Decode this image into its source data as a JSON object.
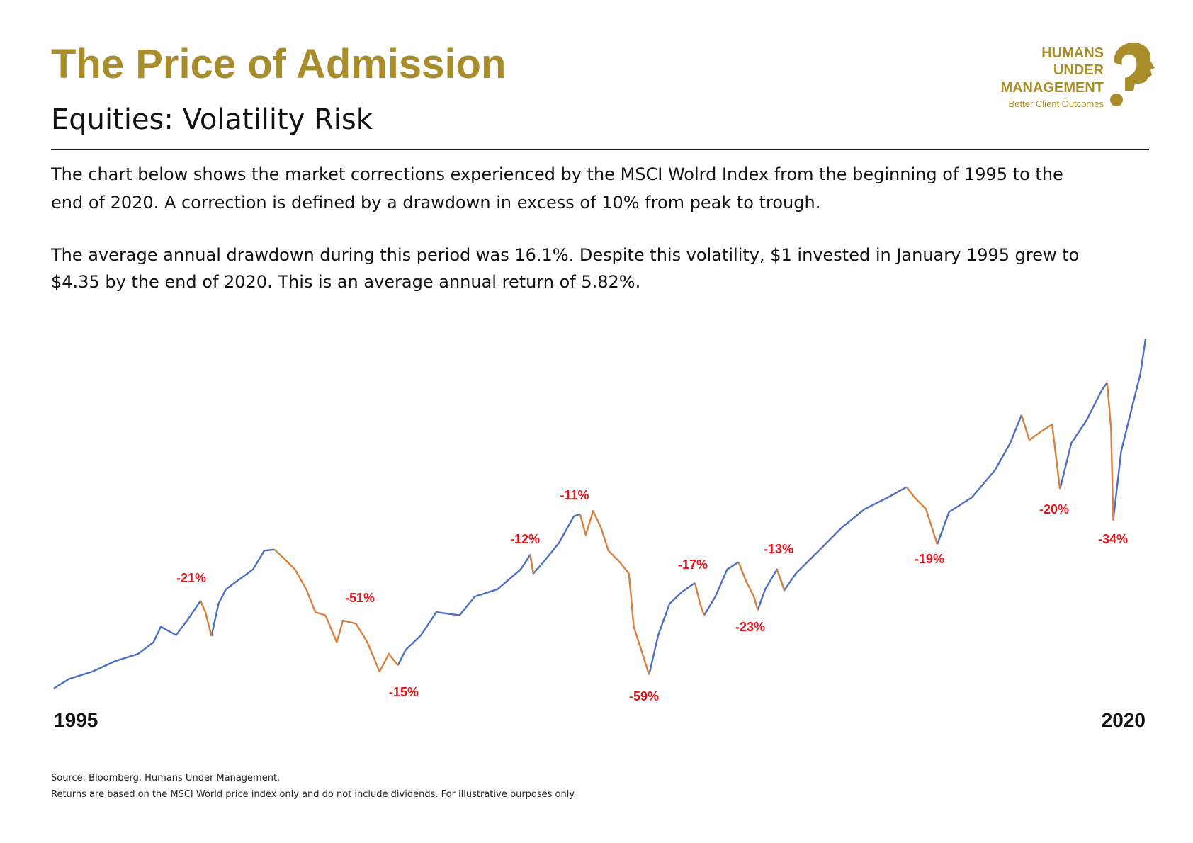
{
  "header": {
    "title": "The Price of Admission",
    "subtitle": "Equities: Volatility Risk"
  },
  "logo": {
    "lines": [
      "HUMANS",
      "UNDER",
      "MANAGEMENT"
    ],
    "tagline": "Better Client Outcomes"
  },
  "intro": [
    "The chart below shows the market corrections experienced by the MSCI Wolrd Index from the beginning of 1995 to the",
    "end of 2020. A correction is defined by a drawdown in excess of 10% from peak to trough.",
    "The average annual drawdown during this period was 16.1%. Despite this volatility, $1 invested in January 1995 grew to",
    "$4.35 by the end of 2020. This is an average annual return of 5.82%."
  ],
  "chart_data": {
    "type": "line",
    "x": [
      1995.0,
      1995.35,
      1995.88,
      1996.4,
      1996.93,
      1997.28,
      1997.45,
      1997.8,
      1998.07,
      1998.36,
      1998.47,
      1998.61,
      1998.77,
      1998.94,
      1999.2,
      1999.56,
      1999.82,
      2000.05,
      2000.26,
      2000.52,
      2000.78,
      2000.99,
      2001.22,
      2001.48,
      2001.62,
      2001.92,
      2002.18,
      2002.46,
      2002.67,
      2002.88,
      2003.06,
      2003.41,
      2003.76,
      2004.29,
      2004.64,
      2005.16,
      2005.69,
      2005.91,
      2005.98,
      2006.21,
      2006.56,
      2006.91,
      2007.05,
      2007.18,
      2007.35,
      2007.53,
      2007.7,
      2007.96,
      2008.17,
      2008.28,
      2008.45,
      2008.63,
      2008.84,
      2009.1,
      2009.37,
      2009.68,
      2009.8,
      2009.89,
      2010.15,
      2010.42,
      2010.68,
      2010.85,
      2011.03,
      2011.12,
      2011.29,
      2011.56,
      2011.73,
      2011.99,
      2012.52,
      2013.04,
      2013.57,
      2014.1,
      2014.53,
      2014.71,
      2014.97,
      2015.23,
      2015.5,
      2016.02,
      2016.55,
      2016.9,
      2017.16,
      2017.34,
      2017.6,
      2017.86,
      2018.04,
      2018.3,
      2018.65,
      2019.0,
      2019.12,
      2019.21,
      2019.26,
      2019.44,
      2019.7,
      2019.88,
      2020.0
    ],
    "series": [
      {
        "color": "#4a6fc4",
        "values": [
          1.0,
          1.09,
          1.16,
          1.26,
          1.33,
          1.44,
          1.59,
          1.51,
          1.66,
          1.84,
          null,
          1.5,
          1.81,
          1.95,
          2.03,
          2.14,
          2.32,
          2.33,
          null,
          null,
          null,
          null,
          null,
          null,
          null,
          null,
          null,
          null,
          null,
          1.22,
          1.37,
          1.51,
          1.73,
          1.7,
          1.88,
          1.95,
          2.14,
          2.28,
          2.1,
          2.21,
          2.39,
          2.65,
          2.67,
          null,
          null,
          null,
          null,
          null,
          null,
          null,
          null,
          1.13,
          1.51,
          1.81,
          1.92,
          2.01,
          null,
          1.7,
          1.88,
          2.14,
          2.21,
          null,
          null,
          1.75,
          1.95,
          2.14,
          1.94,
          2.1,
          2.32,
          2.54,
          2.72,
          2.83,
          2.93,
          null,
          null,
          2.38,
          2.69,
          2.83,
          3.09,
          3.35,
          3.62,
          null,
          null,
          null,
          2.91,
          3.35,
          3.57,
          3.86,
          3.93,
          null,
          2.61,
          3.27,
          3.71,
          4.01,
          4.35
        ]
      },
      {
        "color": "#d9803f",
        "values": [
          null,
          null,
          null,
          null,
          null,
          null,
          null,
          null,
          null,
          1.84,
          1.73,
          1.5,
          null,
          null,
          null,
          null,
          null,
          2.33,
          2.25,
          2.14,
          1.95,
          1.73,
          1.7,
          1.44,
          1.65,
          1.62,
          1.44,
          1.16,
          1.33,
          1.22,
          null,
          null,
          null,
          null,
          null,
          null,
          null,
          2.28,
          2.1,
          null,
          null,
          null,
          2.67,
          2.47,
          2.7,
          2.54,
          2.32,
          2.21,
          2.1,
          1.59,
          1.37,
          1.13,
          null,
          null,
          null,
          2.01,
          1.81,
          1.7,
          null,
          null,
          2.21,
          2.03,
          1.88,
          1.75,
          null,
          2.14,
          1.94,
          null,
          null,
          null,
          null,
          null,
          2.93,
          2.83,
          2.72,
          2.38,
          null,
          null,
          null,
          null,
          3.62,
          3.38,
          3.46,
          3.53,
          2.91,
          null,
          null,
          null,
          3.93,
          3.49,
          2.61,
          null,
          null,
          null,
          null
        ]
      }
    ],
    "xlim": [
      1995,
      2020
    ],
    "xticks": [
      1995,
      2020
    ],
    "ylim": [
      0.95,
      4.4
    ],
    "annotations": [
      "-21%",
      "-51%",
      "-15%",
      "-12%",
      "-11%",
      "-59%",
      "-17%",
      "-23%",
      "-13%",
      "-19%",
      "-20%",
      "-34%"
    ],
    "annotation_color": "#e8141c"
  },
  "footer": [
    "Source: Bloomberg, Humans Under Management.",
    "Returns are based on the MSCI World price index only and do not include dividends. For illustrative purposes only."
  ]
}
